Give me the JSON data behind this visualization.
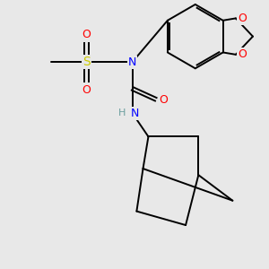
{
  "bg_color": "#e8e8e8",
  "line_color": "#000000",
  "atom_colors": {
    "N": "#0000ff",
    "O": "#ff0000",
    "S": "#cccc00",
    "H": "#6b9e9e",
    "C": "#000000"
  },
  "figsize": [
    3.0,
    3.0
  ],
  "dpi": 100
}
